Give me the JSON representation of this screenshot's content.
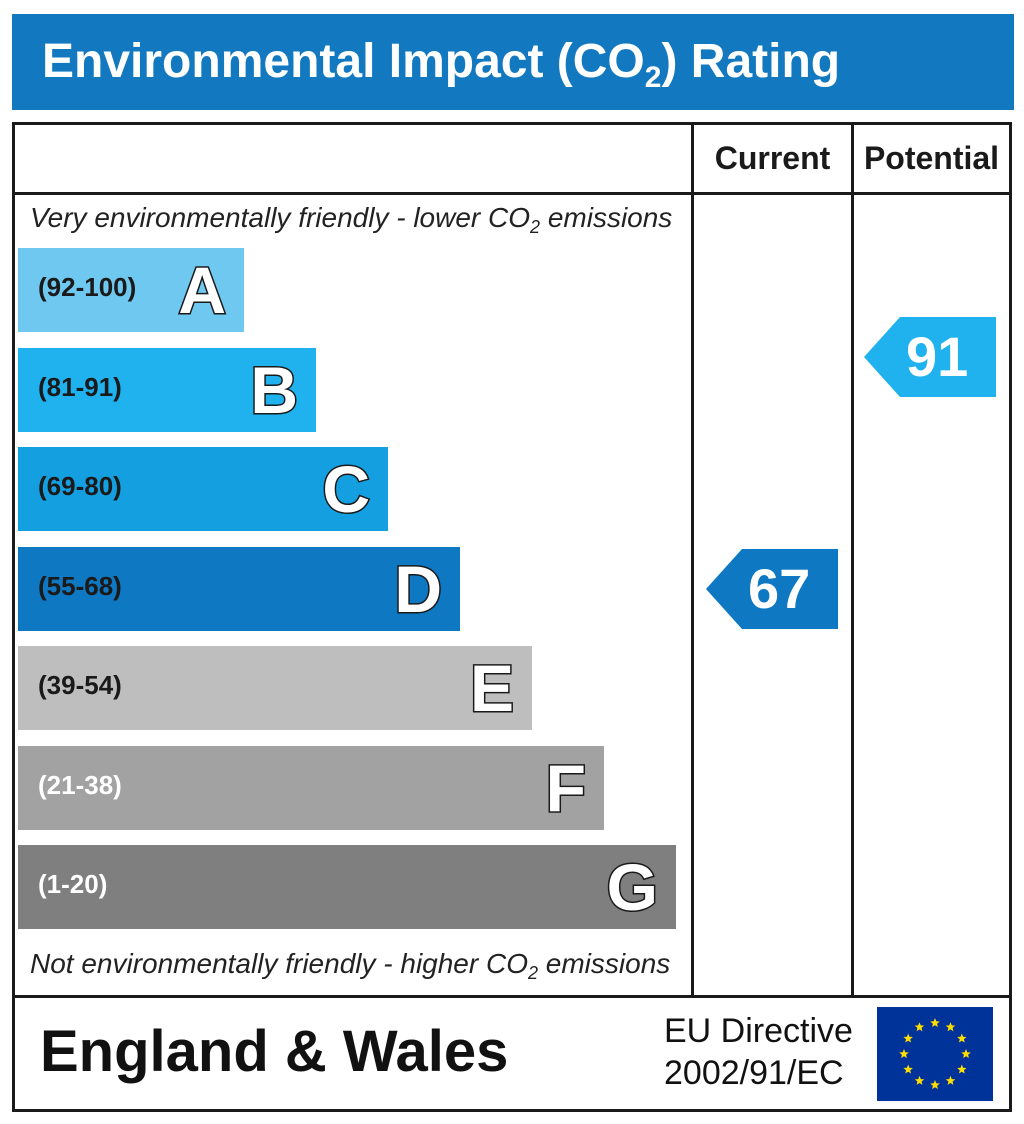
{
  "title": {
    "main": "Environmental Impact (CO",
    "sub": "2",
    "tail": ") Rating"
  },
  "columns": {
    "current": "Current",
    "potential": "Potential"
  },
  "top_note": {
    "before": "Very environmentally friendly - lower CO",
    "sub": "2",
    "after": " emissions"
  },
  "bottom_note": {
    "before": "Not environmentally friendly - higher CO",
    "sub": "2",
    "after": " emissions"
  },
  "chart_data": {
    "type": "bar",
    "title": "Environmental Impact (CO2) Rating",
    "categories": [
      "A",
      "B",
      "C",
      "D",
      "E",
      "F",
      "G"
    ],
    "bands": [
      {
        "letter": "A",
        "range": "(92-100)",
        "min": 92,
        "max": 100,
        "color": "#6fc8f0",
        "range_color": "#1a1a1a"
      },
      {
        "letter": "B",
        "range": "(81-91)",
        "min": 81,
        "max": 91,
        "color": "#1fb2ef",
        "range_color": "#1a1a1a"
      },
      {
        "letter": "C",
        "range": "(69-80)",
        "min": 69,
        "max": 80,
        "color": "#14a0e0",
        "range_color": "#1a1a1a"
      },
      {
        "letter": "D",
        "range": "(55-68)",
        "min": 55,
        "max": 68,
        "color": "#0f78c2",
        "range_color": "#1a1a1a"
      },
      {
        "letter": "E",
        "range": "(39-54)",
        "min": 39,
        "max": 54,
        "color": "#bebebe",
        "range_color": "#1a1a1a"
      },
      {
        "letter": "F",
        "range": "(21-38)",
        "min": 21,
        "max": 38,
        "color": "#a2a2a2",
        "range_color": "#ffffff"
      },
      {
        "letter": "G",
        "range": "(1-20)",
        "min": 1,
        "max": 20,
        "color": "#7f7f7f",
        "range_color": "#ffffff"
      }
    ],
    "current": {
      "value": 67,
      "label": "67",
      "band": "D",
      "color": "#0f78c2"
    },
    "potential": {
      "value": 91,
      "label": "91",
      "band": "B",
      "color": "#1fb2ef"
    }
  },
  "footer": {
    "region": "England & Wales",
    "directive_line1": "EU Directive",
    "directive_line2": "2002/91/EC"
  },
  "colors": {
    "title_bg": "#1279c0",
    "eu_flag_bg": "#003399",
    "eu_stars": "#ffdd00"
  }
}
